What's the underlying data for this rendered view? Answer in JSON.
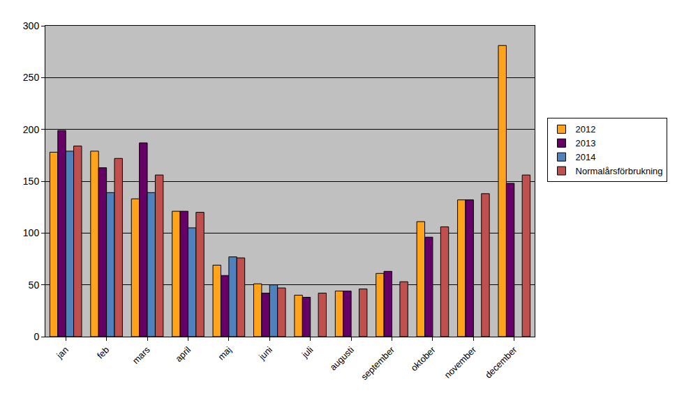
{
  "chart_data": {
    "type": "bar",
    "categories": [
      "jan",
      "feb",
      "mars",
      "april",
      "maj",
      "juni",
      "juli",
      "augusti",
      "september",
      "oktober",
      "november",
      "december"
    ],
    "series": [
      {
        "name": "2012",
        "color": "#FFA31A",
        "values": [
          178,
          179,
          133,
          121,
          69,
          51,
          40,
          44,
          61,
          111,
          132,
          281
        ]
      },
      {
        "name": "2013",
        "color": "#660066",
        "values": [
          199,
          163,
          187,
          121,
          59,
          42,
          38,
          44,
          63,
          96,
          132,
          148
        ]
      },
      {
        "name": "2014",
        "color": "#4F81BD",
        "values": [
          179,
          139,
          139,
          105,
          77,
          50,
          null,
          null,
          null,
          null,
          null,
          null
        ]
      },
      {
        "name": "Normalårsförbrukning",
        "color": "#C0504D",
        "values": [
          184,
          172,
          156,
          120,
          76,
          47,
          42,
          46,
          53,
          106,
          138,
          156
        ]
      }
    ],
    "ylim": [
      0,
      300
    ],
    "yticks": [
      0,
      50,
      100,
      150,
      200,
      250,
      300
    ],
    "grid": true,
    "legend": "right"
  }
}
